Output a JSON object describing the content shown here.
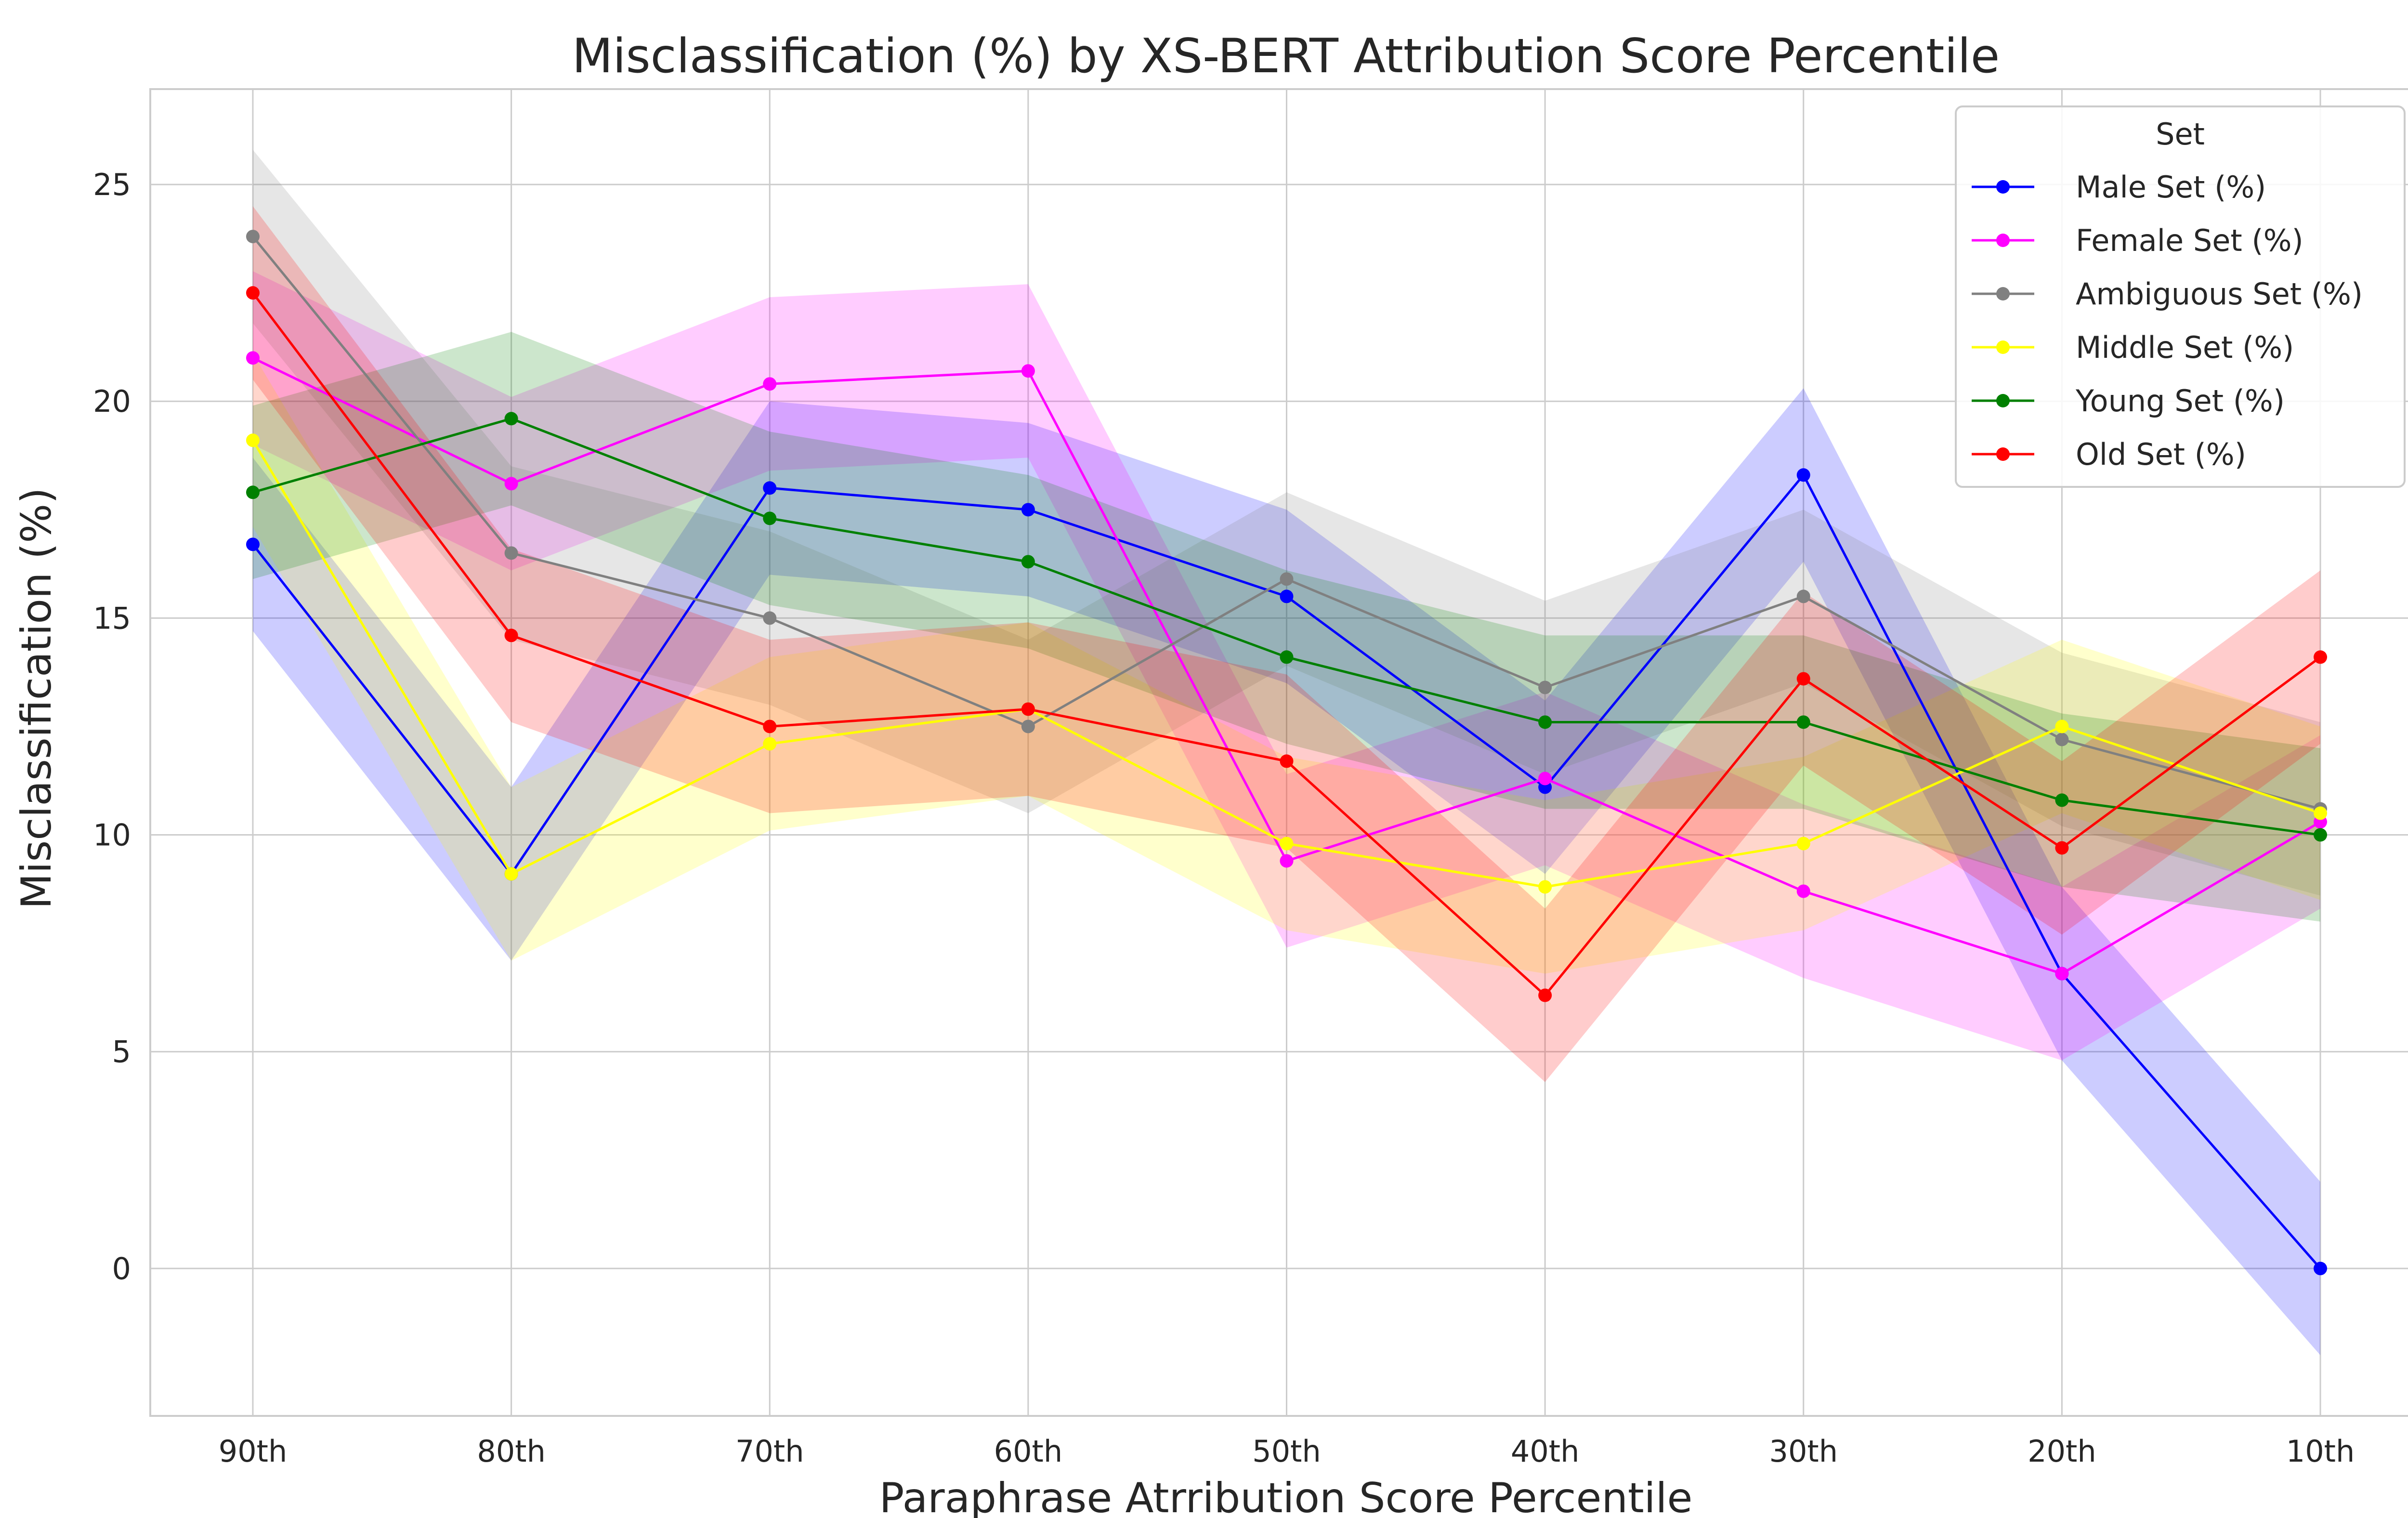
{
  "chart_data": {
    "type": "line",
    "title": "Misclassification (%) by XS-BERT Attribution Score Percentile",
    "xlabel": "Paraphrase Atrribution Score Percentile",
    "ylabel": "Misclassification (%)",
    "categories": [
      "90th",
      "80th",
      "70th",
      "60th",
      "50th",
      "40th",
      "30th",
      "20th",
      "10th"
    ],
    "ylim": [
      -3.4,
      27.2
    ],
    "yticks": [
      0,
      5,
      10,
      15,
      20,
      25
    ],
    "grid": true,
    "legend": {
      "title": "Set",
      "placement": "top-right"
    },
    "series": [
      {
        "name": "Male Set (%)",
        "color": "#0000ff",
        "values": [
          16.7,
          9.1,
          18.0,
          17.5,
          15.5,
          11.1,
          18.3,
          6.8,
          0.0
        ],
        "lower": [
          14.7,
          7.1,
          16.0,
          15.5,
          13.5,
          9.1,
          16.3,
          4.8,
          -2.0
        ],
        "upper": [
          18.7,
          11.1,
          20.0,
          19.5,
          17.5,
          13.1,
          20.3,
          8.8,
          2.0
        ]
      },
      {
        "name": "Female Set (%)",
        "color": "#ff00ff",
        "values": [
          21.0,
          18.1,
          20.4,
          20.7,
          9.4,
          11.3,
          8.7,
          6.8,
          10.3
        ],
        "lower": [
          19.0,
          16.1,
          18.4,
          18.7,
          7.4,
          9.3,
          6.7,
          4.8,
          8.3
        ],
        "upper": [
          23.0,
          20.1,
          22.4,
          22.7,
          11.4,
          13.3,
          10.7,
          8.8,
          12.3
        ]
      },
      {
        "name": "Ambiguous Set (%)",
        "color": "#808080",
        "values": [
          23.8,
          16.5,
          15.0,
          12.5,
          15.9,
          13.4,
          15.5,
          12.2,
          10.6
        ],
        "lower": [
          21.8,
          14.5,
          13.0,
          10.5,
          13.9,
          11.4,
          13.5,
          10.2,
          8.6
        ],
        "upper": [
          25.8,
          18.5,
          17.0,
          14.5,
          17.9,
          15.4,
          17.5,
          14.2,
          12.6
        ]
      },
      {
        "name": "Middle Set (%)",
        "color": "#ffff00",
        "values": [
          19.1,
          9.1,
          12.1,
          12.9,
          9.8,
          8.8,
          9.8,
          12.5,
          10.5
        ],
        "lower": [
          17.1,
          7.1,
          10.1,
          10.9,
          7.8,
          6.8,
          7.8,
          10.5,
          8.5
        ],
        "upper": [
          21.1,
          11.1,
          14.1,
          14.9,
          11.8,
          10.8,
          11.8,
          14.5,
          12.5
        ]
      },
      {
        "name": "Young Set (%)",
        "color": "#008000",
        "values": [
          17.9,
          19.6,
          17.3,
          16.3,
          14.1,
          12.6,
          12.6,
          10.8,
          10.0
        ],
        "lower": [
          15.9,
          17.6,
          15.3,
          14.3,
          12.1,
          10.6,
          10.6,
          8.8,
          8.0
        ],
        "upper": [
          19.9,
          21.6,
          19.3,
          18.3,
          16.1,
          14.6,
          14.6,
          12.8,
          12.0
        ]
      },
      {
        "name": "Old Set (%)",
        "color": "#ff0000",
        "values": [
          22.5,
          14.6,
          12.5,
          12.9,
          11.7,
          6.3,
          13.6,
          9.7,
          14.1
        ],
        "lower": [
          20.5,
          12.6,
          10.5,
          10.9,
          9.7,
          4.3,
          11.6,
          7.7,
          12.1
        ],
        "upper": [
          24.5,
          16.6,
          14.5,
          14.9,
          13.7,
          8.3,
          15.6,
          11.7,
          16.1
        ]
      }
    ]
  }
}
